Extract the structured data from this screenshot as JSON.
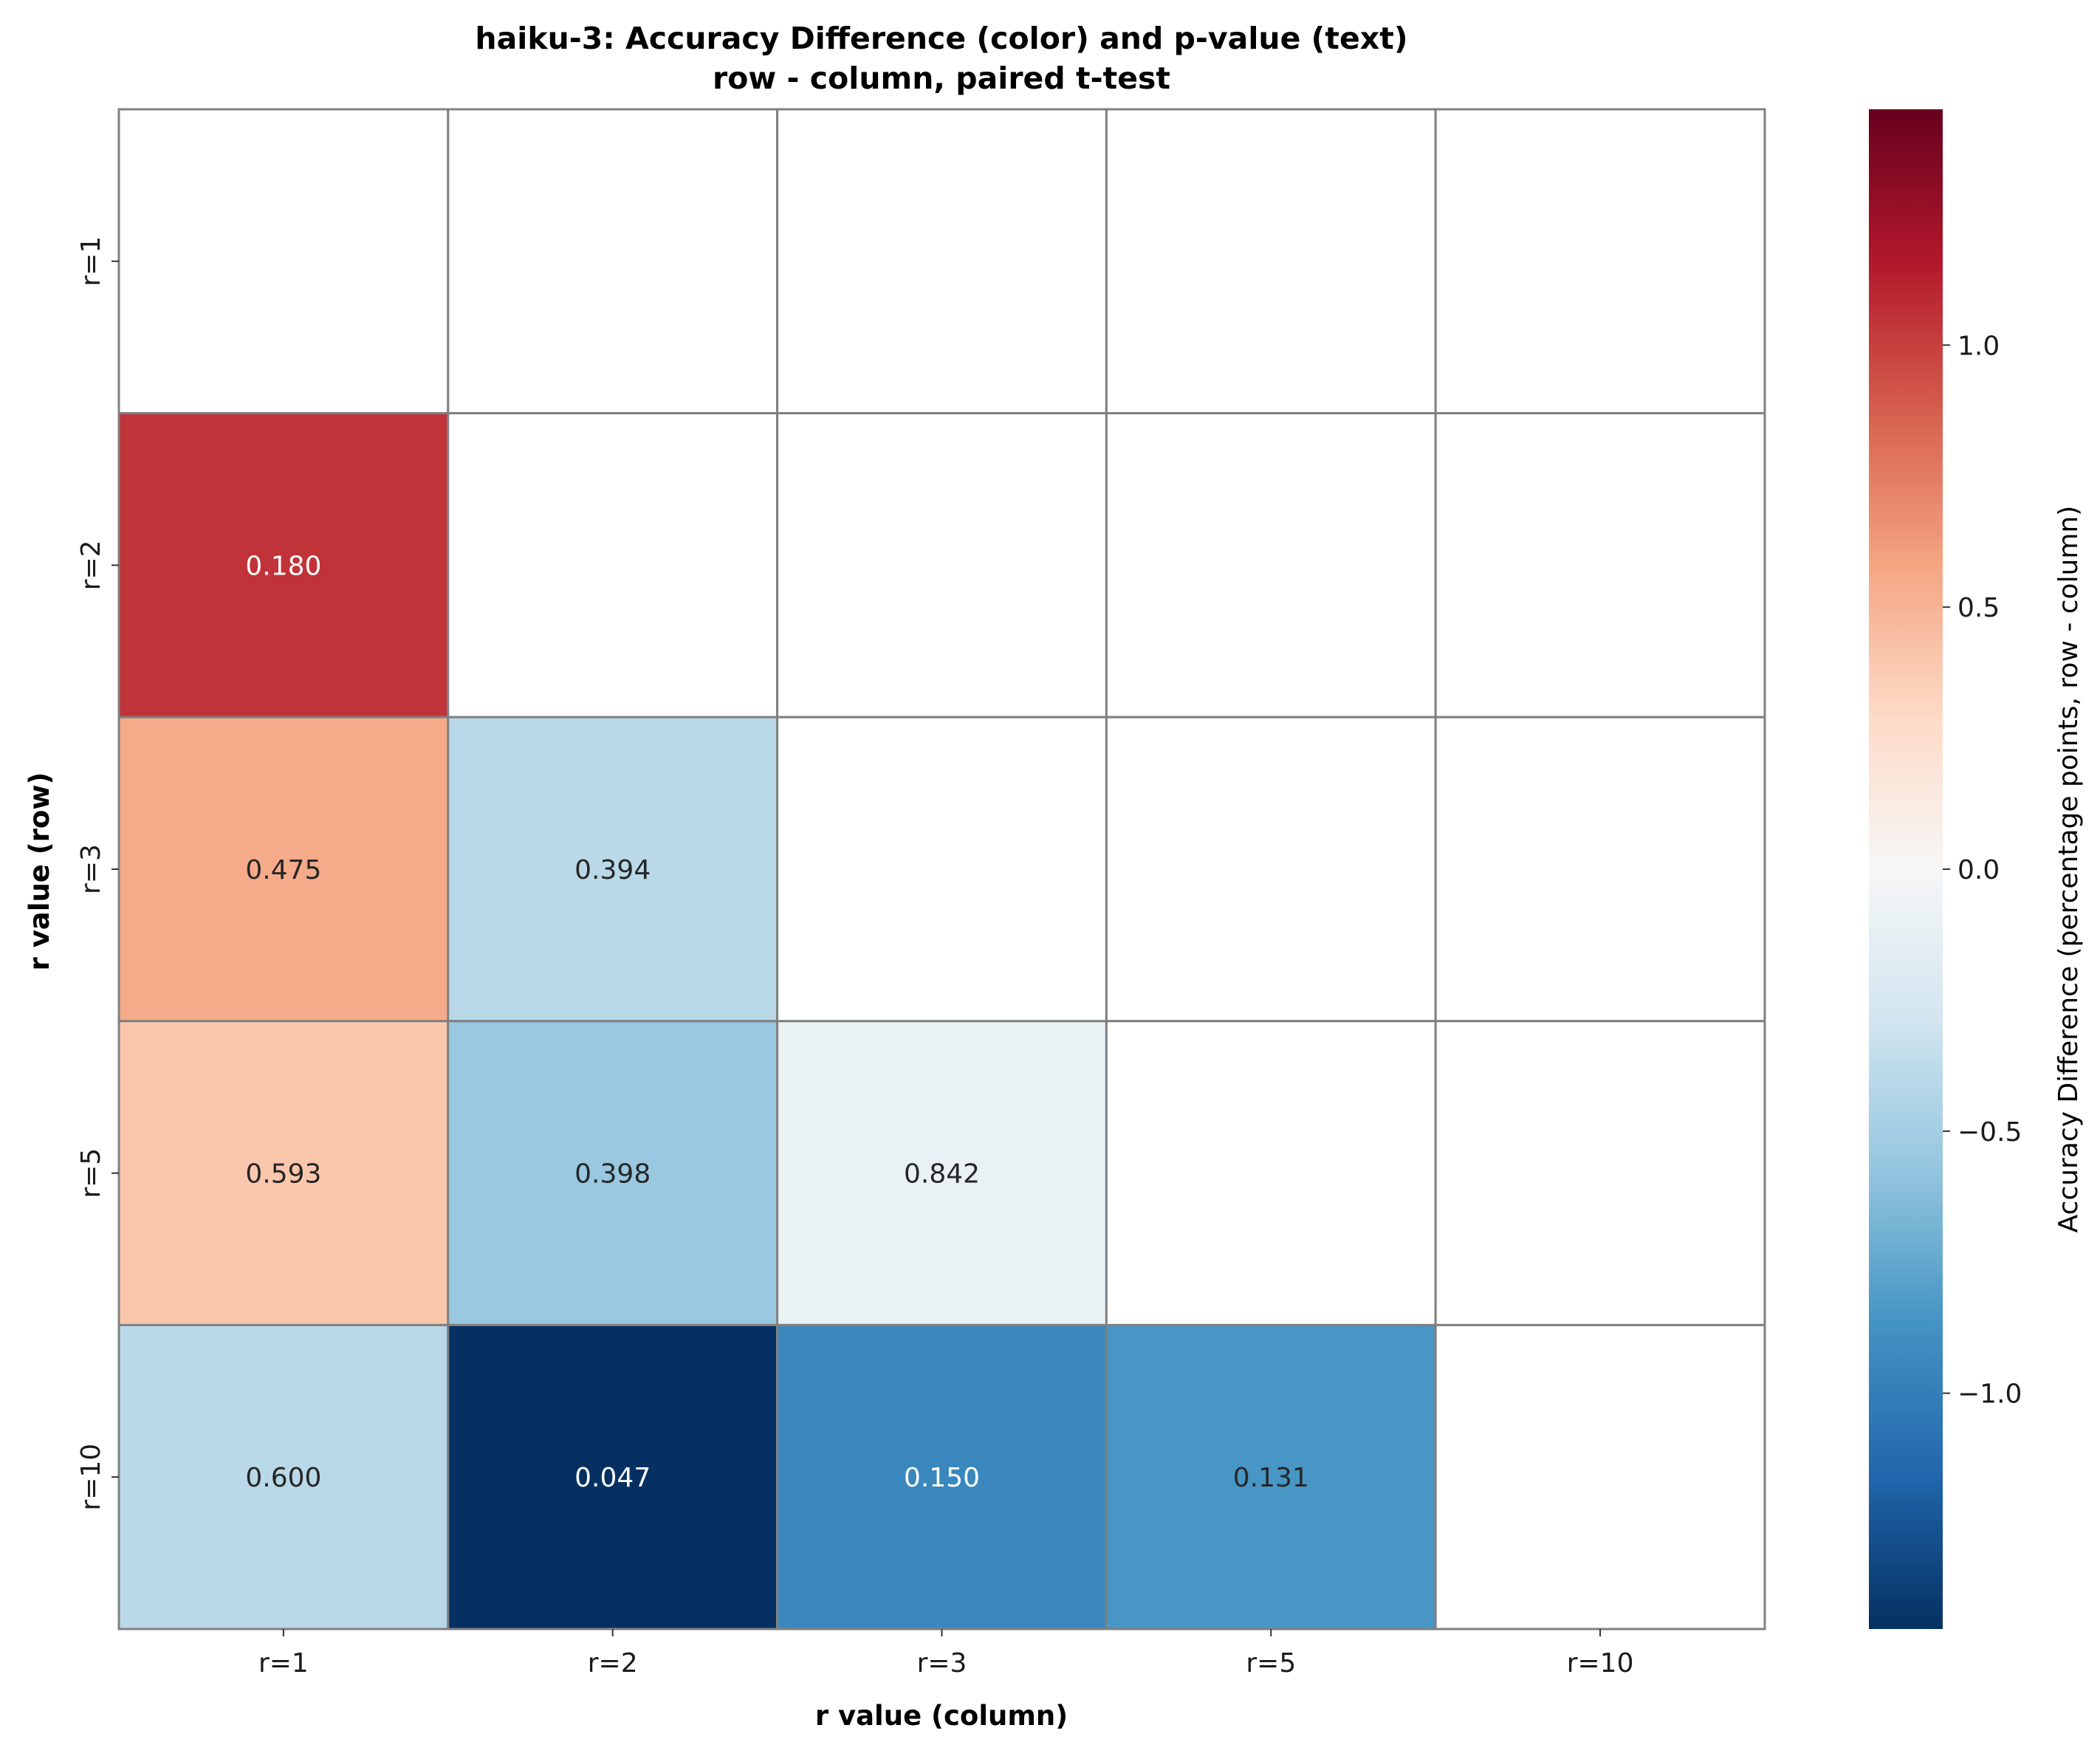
{
  "chart_data": {
    "type": "heatmap",
    "title": "haiku-3: Accuracy Difference (color) and p-value (text)",
    "subtitle": "row - column, paired t-test",
    "xlabel": "r value (column)",
    "ylabel": "r value (row)",
    "x_categories": [
      "r=1",
      "r=2",
      "r=3",
      "r=5",
      "r=10"
    ],
    "y_categories": [
      "r=1",
      "r=2",
      "r=3",
      "r=5",
      "r=10"
    ],
    "colorbar": {
      "label": "Accuracy Difference (percentage points, row - column)",
      "range": [
        -1.45,
        1.45
      ],
      "ticks": [
        -1.0,
        -0.5,
        0.0,
        0.5,
        1.0
      ],
      "tick_labels": [
        "−1.0",
        "−0.5",
        "0.0",
        "0.5",
        "1.0"
      ],
      "colormap": "RdBu_r"
    },
    "cells": [
      {
        "row": "r=2",
        "col": "r=1",
        "diff": 1.05,
        "p_label": "0.180"
      },
      {
        "row": "r=3",
        "col": "r=1",
        "diff": 0.55,
        "p_label": "0.475"
      },
      {
        "row": "r=3",
        "col": "r=2",
        "diff": -0.4,
        "p_label": "0.394"
      },
      {
        "row": "r=5",
        "col": "r=1",
        "diff": 0.4,
        "p_label": "0.593"
      },
      {
        "row": "r=5",
        "col": "r=2",
        "diff": -0.55,
        "p_label": "0.398"
      },
      {
        "row": "r=5",
        "col": "r=3",
        "diff": -0.1,
        "p_label": "0.842"
      },
      {
        "row": "r=10",
        "col": "r=1",
        "diff": -0.4,
        "p_label": "0.600"
      },
      {
        "row": "r=10",
        "col": "r=2",
        "diff": -1.45,
        "p_label": "0.047"
      },
      {
        "row": "r=10",
        "col": "r=3",
        "diff": -0.95,
        "p_label": "0.150"
      },
      {
        "row": "r=10",
        "col": "r=5",
        "diff": -0.85,
        "p_label": "0.131"
      }
    ]
  }
}
